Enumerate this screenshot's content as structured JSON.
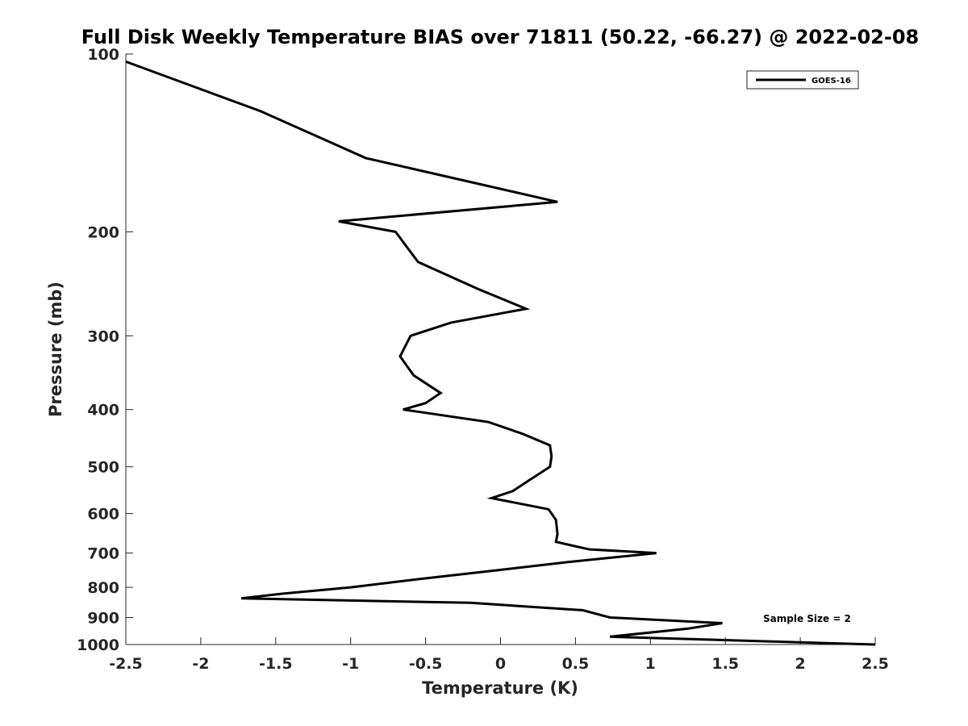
{
  "chart_data": {
    "type": "line",
    "title": "Full Disk Weekly Temperature BIAS over 71811 (50.22, -66.27) @ 2022-02-08",
    "xlabel": "Temperature (K)",
    "ylabel": "Pressure (mb)",
    "xlim": [
      -2.5,
      2.5
    ],
    "ylim": [
      1000,
      100
    ],
    "y_scale": "log",
    "y_reversed": true,
    "x_ticks": [
      -2.5,
      -2,
      -1.5,
      -1,
      -0.5,
      0,
      0.5,
      1,
      1.5,
      2,
      2.5
    ],
    "x_tick_labels": [
      "-2.5",
      "-2",
      "-1.5",
      "-1",
      "-0.5",
      "0",
      "0.5",
      "1",
      "1.5",
      "2",
      "2.5"
    ],
    "y_ticks": [
      100,
      200,
      300,
      400,
      500,
      600,
      700,
      800,
      900,
      1000
    ],
    "y_tick_labels": [
      "100",
      "200",
      "300",
      "400",
      "500",
      "600",
      "700",
      "800",
      "900",
      "1000"
    ],
    "grid": false,
    "legend_position": "top-right",
    "series": [
      {
        "name": "GOES-16",
        "color": "#000000",
        "x": [
          -2.5,
          -1.6,
          -0.9,
          0.38,
          -1.08,
          -0.7,
          -0.55,
          -0.15,
          0.17,
          -0.33,
          -0.6,
          -0.67,
          -0.58,
          -0.4,
          -0.5,
          -0.65,
          -0.08,
          0.15,
          0.33,
          0.34,
          0.33,
          0.2,
          0.08,
          -0.06,
          0.32,
          0.37,
          0.38,
          0.37,
          0.59,
          1.04,
          0.45,
          -0.05,
          -0.55,
          -1.0,
          -1.45,
          -1.73,
          -0.2,
          0.55,
          0.73,
          1.48,
          1.25,
          0.73,
          2.5
        ],
        "y": [
          103,
          125,
          150,
          178,
          192,
          200,
          225,
          250,
          270,
          285,
          300,
          325,
          350,
          375,
          390,
          400,
          420,
          440,
          460,
          480,
          500,
          525,
          550,
          565,
          590,
          615,
          650,
          670,
          690,
          700,
          725,
          750,
          775,
          800,
          820,
          835,
          850,
          875,
          900,
          920,
          940,
          970,
          1000
        ]
      }
    ],
    "annotations": [
      {
        "text": "Sample Size = 2"
      }
    ]
  }
}
